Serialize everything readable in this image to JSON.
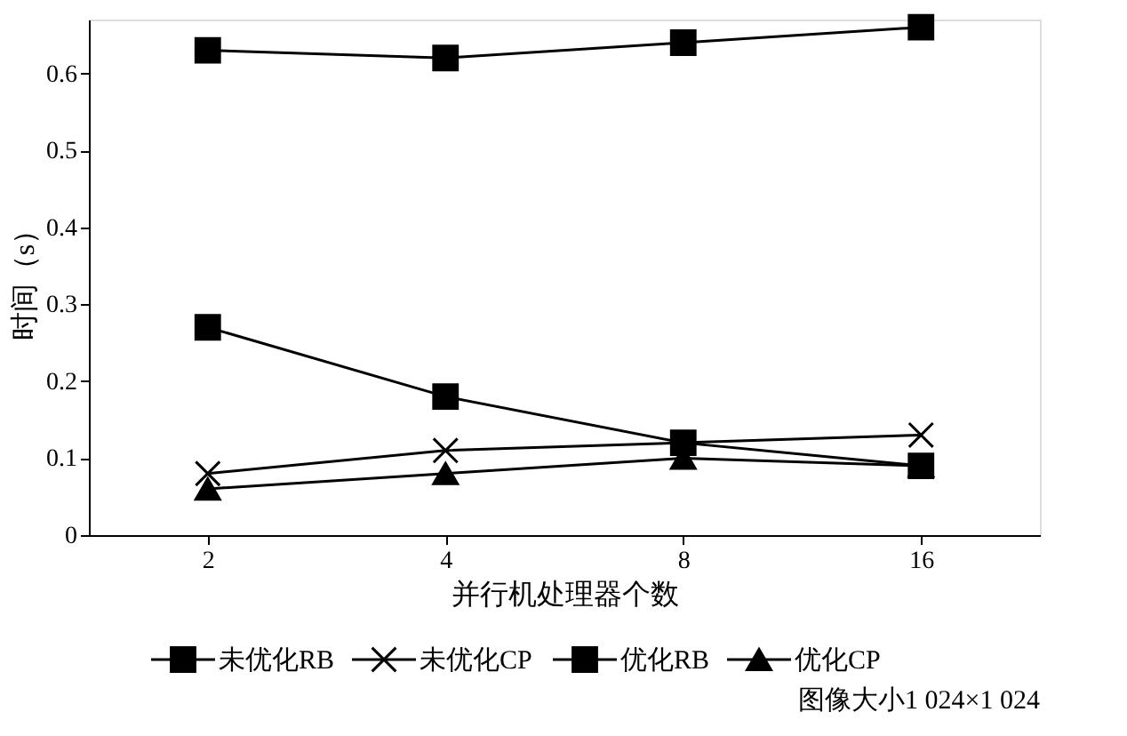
{
  "chart_data": {
    "type": "line",
    "xlabel": "并行机处理器个数",
    "ylabel": "时间（s）",
    "categories": [
      "2",
      "4",
      "8",
      "16"
    ],
    "series": [
      {
        "name": "未优化RB",
        "color": "#000000",
        "marker": "square",
        "values": [
          0.63,
          0.62,
          0.64,
          0.66
        ]
      },
      {
        "name": "未优化CP",
        "color": "#000000",
        "marker": "cross",
        "values": [
          0.08,
          0.11,
          0.12,
          0.13
        ]
      },
      {
        "name": "优化RB",
        "color": "#000000",
        "marker": "square",
        "values": [
          0.27,
          0.18,
          0.12,
          0.09
        ]
      },
      {
        "name": "优化CP",
        "color": "#000000",
        "marker": "triangle",
        "values": [
          0.06,
          0.08,
          0.1,
          0.09
        ]
      }
    ],
    "ylim": [
      0,
      0.67
    ],
    "yticks": [
      0,
      0.1,
      0.2,
      0.3,
      0.4,
      0.5,
      0.6
    ],
    "grid": false,
    "legend": "bottom",
    "line_style": "solid",
    "annotations": [
      "图像大小1 024×1 024"
    ]
  }
}
